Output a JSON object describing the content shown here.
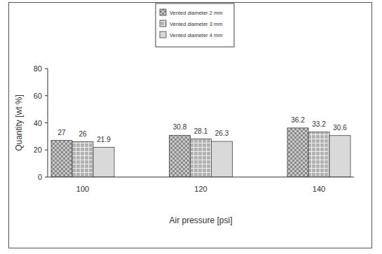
{
  "chart_data": {
    "type": "bar",
    "x_label": "Air pressure [psi]",
    "y_label": "Quantity [wt %]",
    "categories": [
      "100",
      "120",
      "140"
    ],
    "series": [
      {
        "name": "Vented diameter 2 mm",
        "color": "#8a8a8a",
        "values": [
          27,
          30.8,
          36.2
        ]
      },
      {
        "name": "Vented diameter 3 mm",
        "color": "#b2b2b2",
        "values": [
          26,
          28.1,
          33.2
        ]
      },
      {
        "name": "Vented diameter 4 mm",
        "color": "#d9d9d9",
        "values": [
          21.9,
          26.3,
          30.6
        ]
      }
    ],
    "ylim": [
      0,
      80
    ],
    "yticks": [
      0,
      20,
      40,
      60,
      80
    ],
    "grid": false,
    "legend": "top",
    "data_labels": true
  }
}
